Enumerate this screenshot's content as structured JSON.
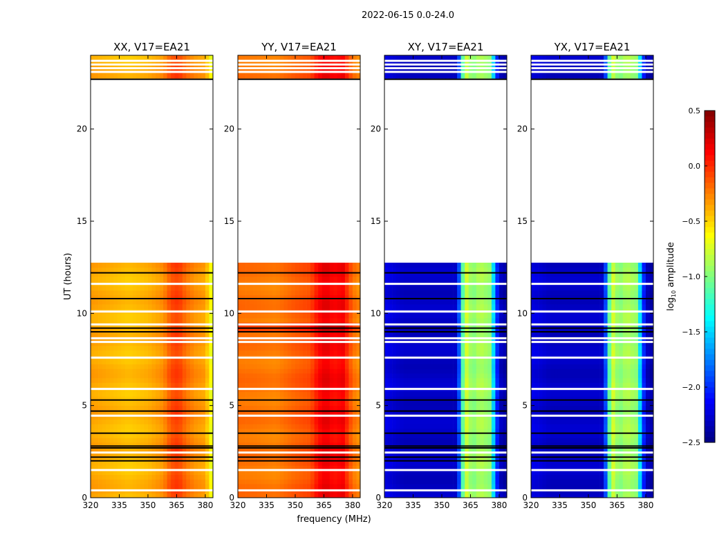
{
  "chart_data": {
    "type": "heatmap",
    "title": "2022-06-15 0.0-24.0",
    "xlabel": "frequency (MHz)",
    "ylabel": "UT (hours)",
    "xlim": [
      320,
      384
    ],
    "ylim": [
      0,
      24
    ],
    "xticks": [
      "320",
      "335",
      "350",
      "365",
      "380"
    ],
    "xtick_values": [
      320,
      335,
      350,
      365,
      380
    ],
    "yticks": [
      "0",
      "5",
      "10",
      "15",
      "20"
    ],
    "ytick_values": [
      0,
      5,
      10,
      15,
      20
    ],
    "data_gap_hours": [
      12.75,
      22.6
    ],
    "flagged_hours_white": [
      0.4,
      1.5,
      2.45,
      4.45,
      5.9,
      7.6,
      8.45,
      8.65,
      9.4,
      10.1,
      11.6,
      23.1,
      23.3,
      23.5,
      23.7
    ],
    "scan_boundaries_hours": [
      2.0,
      2.2,
      2.7,
      2.8,
      3.5,
      4.7,
      5.3,
      9.0,
      9.2,
      10.8,
      12.2,
      22.7
    ],
    "profile_freqs": [
      320,
      330,
      340,
      350,
      358,
      362,
      366,
      370,
      375,
      380,
      384
    ],
    "panels": [
      {
        "title": "XX, V17=EA21",
        "values": [
          -0.35,
          -0.4,
          -0.45,
          -0.4,
          -0.3,
          -0.1,
          -0.05,
          -0.2,
          -0.3,
          -0.35,
          -0.75
        ]
      },
      {
        "title": "YY, V17=EA21",
        "values": [
          -0.2,
          -0.22,
          -0.25,
          -0.15,
          -0.1,
          0.1,
          0.2,
          0.1,
          0.15,
          -0.2,
          -0.3
        ]
      },
      {
        "title": "XY, V17=EA21",
        "values": [
          -2.2,
          -2.3,
          -2.3,
          -2.3,
          -2.3,
          -0.7,
          -1.0,
          -0.85,
          -0.95,
          -2.3,
          -2.4
        ]
      },
      {
        "title": "YX, V17=EA21",
        "values": [
          -2.2,
          -2.3,
          -2.3,
          -2.3,
          -2.3,
          -0.7,
          -1.0,
          -0.85,
          -0.95,
          -2.3,
          -2.4
        ]
      }
    ],
    "colorbar": {
      "label": "log10 amplitude",
      "label_main": "log",
      "label_sub": "10",
      "label_rest": " amplitude",
      "range": [
        -2.5,
        0.5
      ],
      "ticks": [
        "0.5",
        "0.0",
        "−0.5",
        "−1.0",
        "−1.5",
        "−2.0",
        "−2.5"
      ],
      "tick_values": [
        0.5,
        0.0,
        -0.5,
        -1.0,
        -1.5,
        -2.0,
        -2.5
      ],
      "colormap": "jet"
    }
  }
}
